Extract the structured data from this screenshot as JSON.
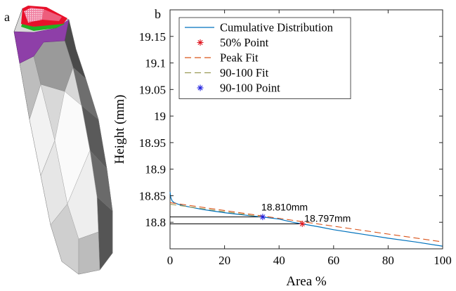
{
  "panel_labels": {
    "a": "a",
    "b": "b"
  },
  "colors": {
    "cumulative": "#0072BD",
    "peak_fit": "#D95319",
    "fit_90_100": "#9A9A55",
    "point_50": "#E0141E",
    "point_90_100": "#1F1FE0",
    "mesh_top_red": "#E8102A",
    "mesh_top_pink": "#F07FA0",
    "mesh_green": "#22B022",
    "mesh_purple": "#8E3FA8"
  },
  "chart_data": {
    "type": "line",
    "xlabel": "Area %",
    "ylabel": "Height (mm)",
    "xlim": [
      0,
      100
    ],
    "ylim": [
      18.75,
      19.2
    ],
    "xticks": [
      0,
      20,
      40,
      60,
      80,
      100
    ],
    "yticks": [
      18.8,
      18.85,
      18.9,
      18.95,
      19,
      19.05,
      19.1,
      19.15
    ],
    "ytick_labels": [
      "18.8",
      "18.85",
      "18.9",
      "18.95",
      "19",
      "19.05",
      "19.1",
      "19.15"
    ],
    "grid": false,
    "legend_position": "top-left",
    "series": [
      {
        "name": "Cumulative Distribution",
        "style": "solid",
        "x": [
          0,
          0.3,
          0.8,
          1.5,
          3,
          5,
          8,
          12,
          16,
          20,
          25,
          30,
          34,
          40,
          45,
          48.5,
          55,
          60,
          70,
          80,
          90,
          100
        ],
        "y": [
          18.857,
          18.846,
          18.84,
          18.837,
          18.834,
          18.831,
          18.828,
          18.824,
          18.821,
          18.818,
          18.815,
          18.812,
          18.81,
          18.806,
          18.8,
          18.797,
          18.791,
          18.786,
          18.778,
          18.77,
          18.763,
          18.755
        ]
      },
      {
        "name": "50% Point",
        "style": "marker",
        "x": [
          48.5
        ],
        "y": [
          18.797
        ]
      },
      {
        "name": "Peak Fit",
        "style": "dashed",
        "x": [
          0,
          100
        ],
        "y": [
          18.837,
          18.763
        ]
      },
      {
        "name": "90-100 Fit",
        "style": "dashed",
        "x": [
          0,
          34
        ],
        "y": [
          18.834,
          18.81
        ]
      },
      {
        "name": "90-100 Point",
        "style": "marker",
        "x": [
          34
        ],
        "y": [
          18.81
        ]
      }
    ],
    "reference_lines": [
      {
        "x_end": 34,
        "y": 18.81
      },
      {
        "x_end": 48.5,
        "y": 18.797
      }
    ],
    "annotations": [
      {
        "text": "18.810mm",
        "x": 34,
        "y": 18.81
      },
      {
        "text": "18.797mm",
        "x": 48.5,
        "y": 18.797
      }
    ]
  }
}
